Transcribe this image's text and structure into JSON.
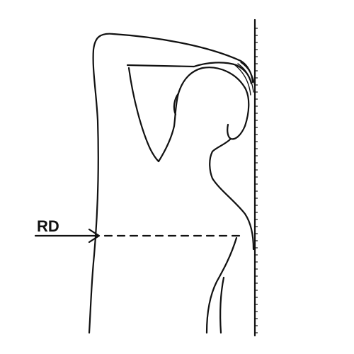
{
  "figure": {
    "label": "RD",
    "stroke_color": "#111111",
    "background_color": "#ffffff"
  }
}
